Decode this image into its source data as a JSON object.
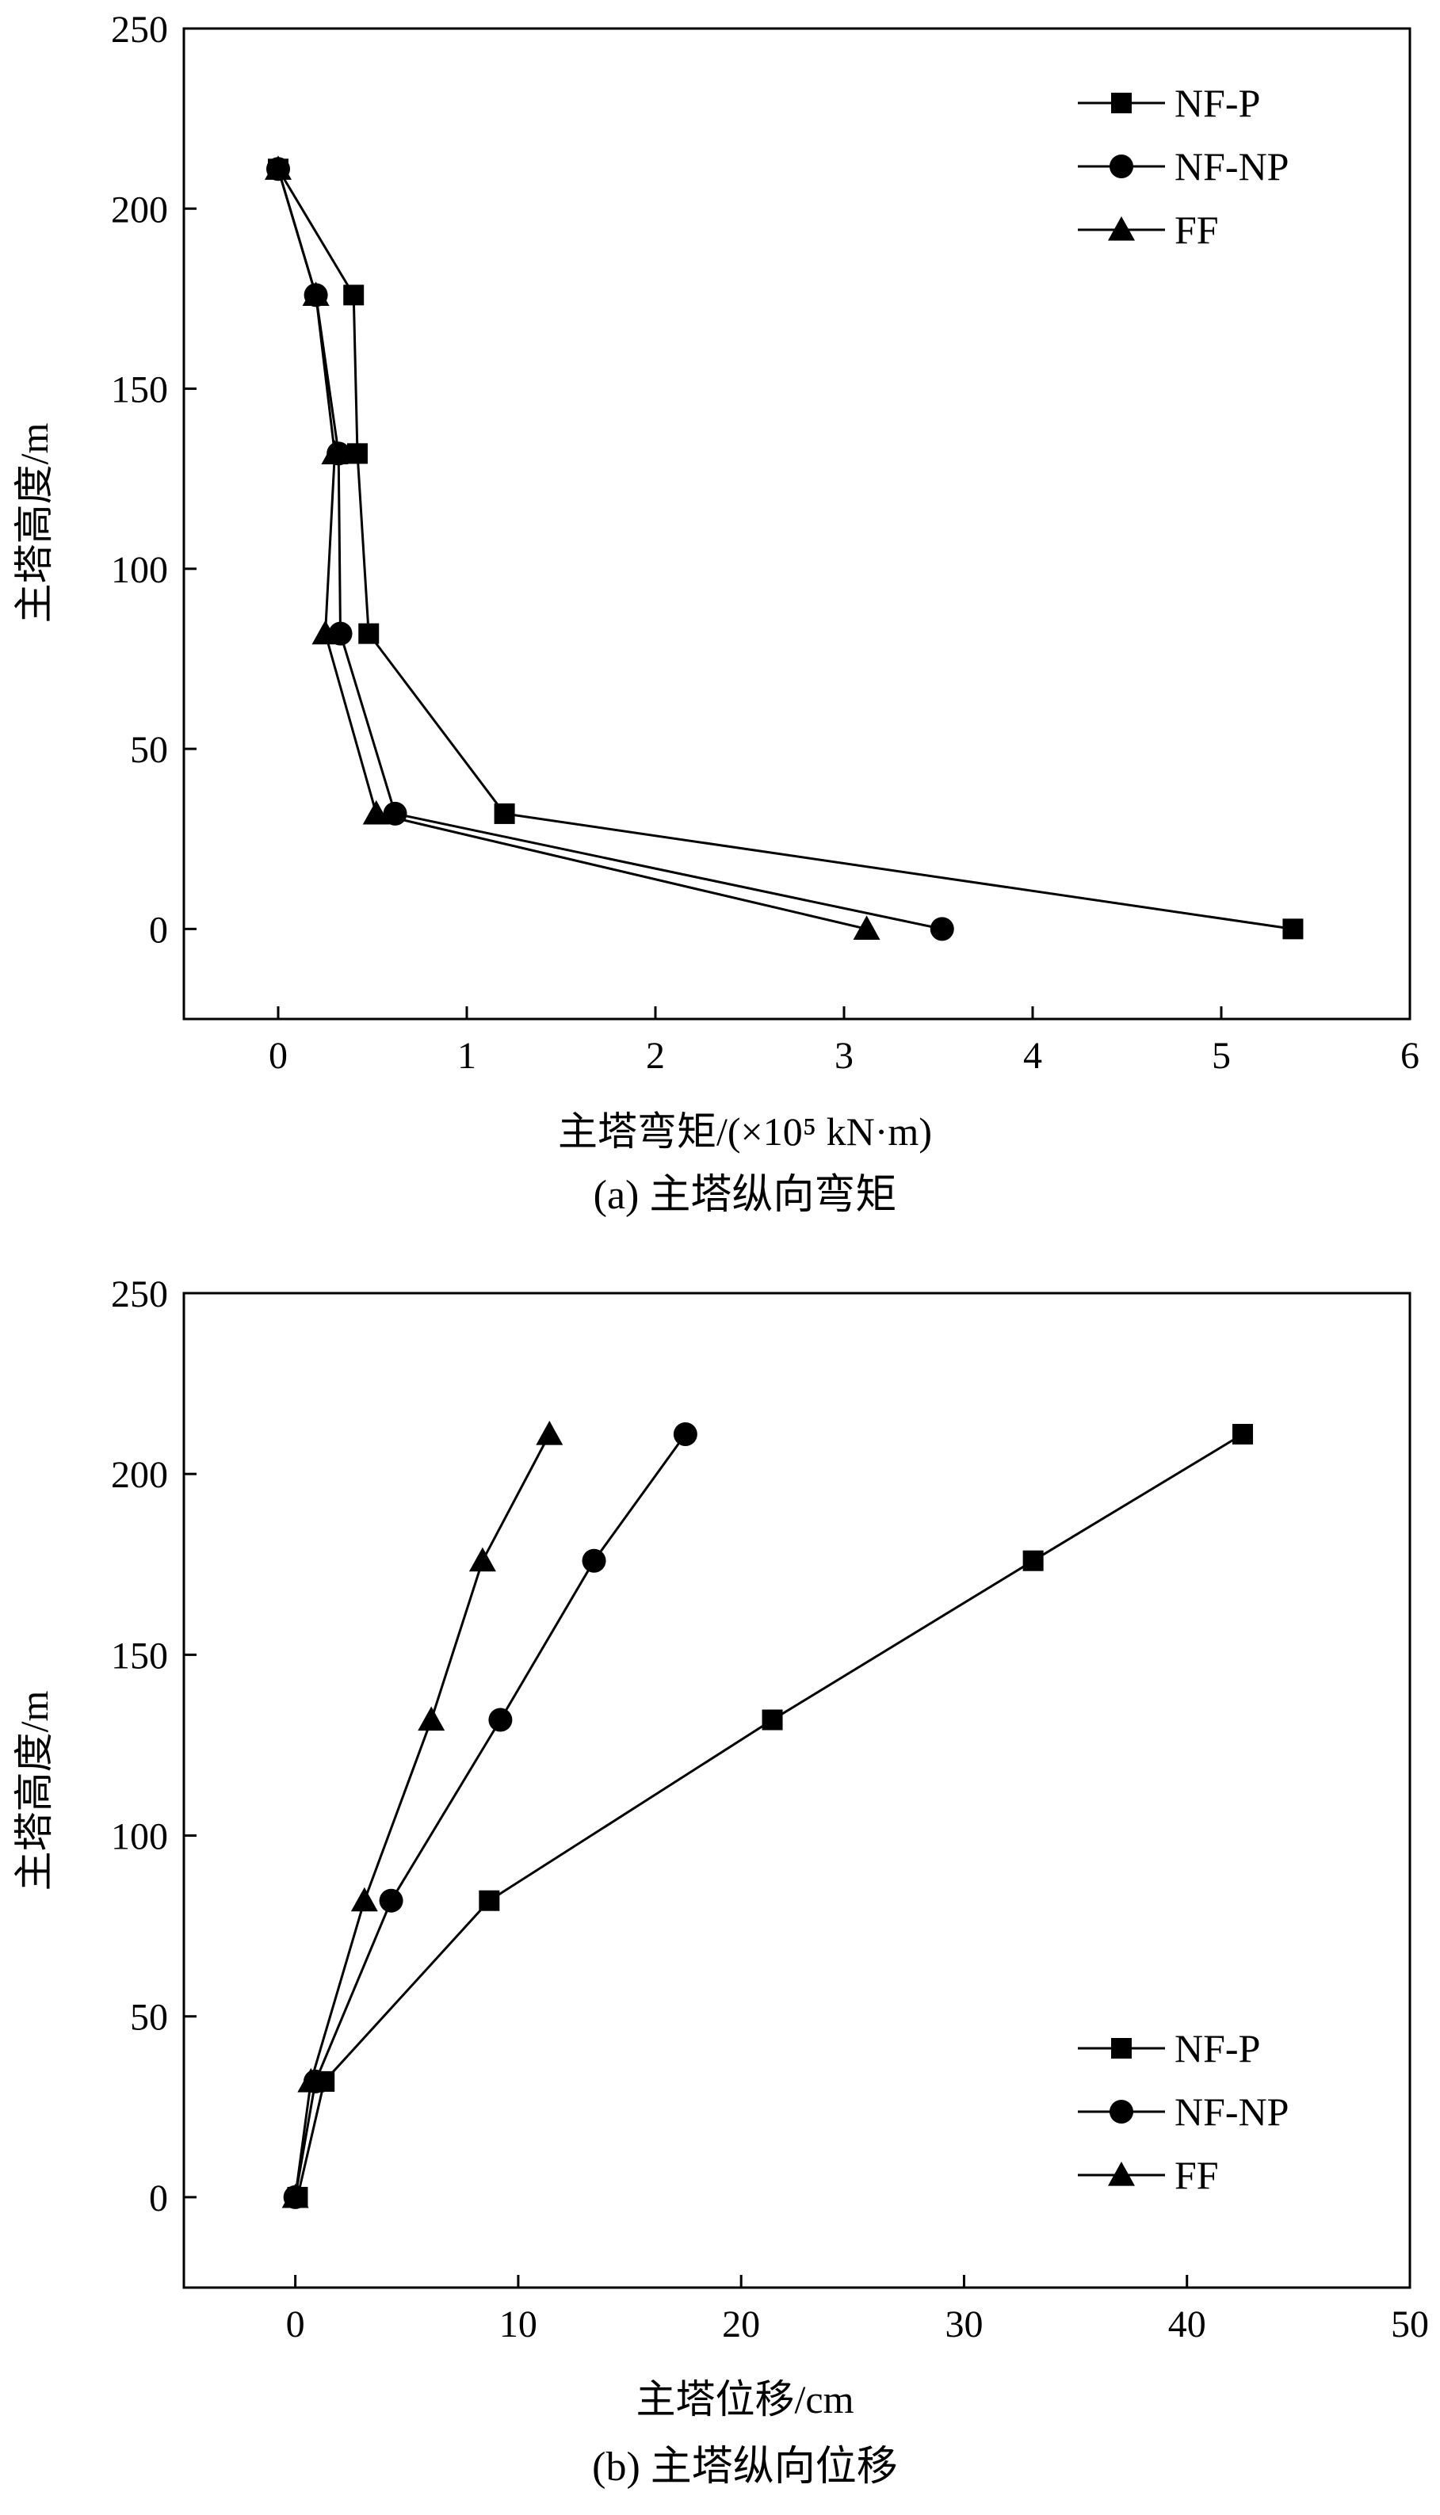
{
  "chart_data": [
    {
      "type": "line",
      "caption": "(a) 主塔纵向弯矩",
      "xlabel": "主塔弯矩/(×10⁵ kN·m)",
      "ylabel": "主塔高度/m",
      "xlim": [
        -0.5,
        6
      ],
      "ylim": [
        -25,
        250
      ],
      "xticks": [
        0,
        1,
        2,
        3,
        4,
        5,
        6
      ],
      "yticks": [
        0,
        50,
        100,
        150,
        200,
        250
      ],
      "grid": false,
      "legend_position": "top-right",
      "series": [
        {
          "name": "NF-P",
          "marker": "square",
          "points": [
            [
              0.0,
              211
            ],
            [
              0.4,
              176
            ],
            [
              0.42,
              132
            ],
            [
              0.48,
              82
            ],
            [
              1.2,
              32
            ],
            [
              5.38,
              0
            ]
          ]
        },
        {
          "name": "NF-NP",
          "marker": "circle",
          "points": [
            [
              0.0,
              211
            ],
            [
              0.2,
              176
            ],
            [
              0.32,
              132
            ],
            [
              0.33,
              82
            ],
            [
              0.62,
              32
            ],
            [
              3.52,
              0
            ]
          ]
        },
        {
          "name": "FF",
          "marker": "triangle",
          "points": [
            [
              0.0,
              211
            ],
            [
              0.2,
              176
            ],
            [
              0.3,
              132
            ],
            [
              0.25,
              82
            ],
            [
              0.52,
              32
            ],
            [
              3.12,
              0
            ]
          ]
        }
      ]
    },
    {
      "type": "line",
      "caption": "(b) 主塔纵向位移",
      "xlabel": "主塔位移/cm",
      "ylabel": "主塔高度/m",
      "xlim": [
        -5,
        50
      ],
      "ylim": [
        -25,
        250
      ],
      "xticks": [
        0,
        10,
        20,
        30,
        40,
        50
      ],
      "yticks": [
        0,
        50,
        100,
        150,
        200,
        250
      ],
      "grid": false,
      "legend_position": "bottom-right",
      "series": [
        {
          "name": "NF-P",
          "marker": "square",
          "points": [
            [
              0.1,
              0
            ],
            [
              1.3,
              32
            ],
            [
              8.7,
              82
            ],
            [
              21.4,
              132
            ],
            [
              33.1,
              176
            ],
            [
              42.5,
              211
            ]
          ]
        },
        {
          "name": "NF-NP",
          "marker": "circle",
          "points": [
            [
              0.0,
              0
            ],
            [
              0.9,
              32
            ],
            [
              4.3,
              82
            ],
            [
              9.2,
              132
            ],
            [
              13.4,
              176
            ],
            [
              17.5,
              211
            ]
          ]
        },
        {
          "name": "FF",
          "marker": "triangle",
          "points": [
            [
              0.0,
              0
            ],
            [
              0.7,
              32
            ],
            [
              3.1,
              82
            ],
            [
              6.1,
              132
            ],
            [
              8.4,
              176
            ],
            [
              11.4,
              211
            ]
          ]
        }
      ]
    }
  ]
}
